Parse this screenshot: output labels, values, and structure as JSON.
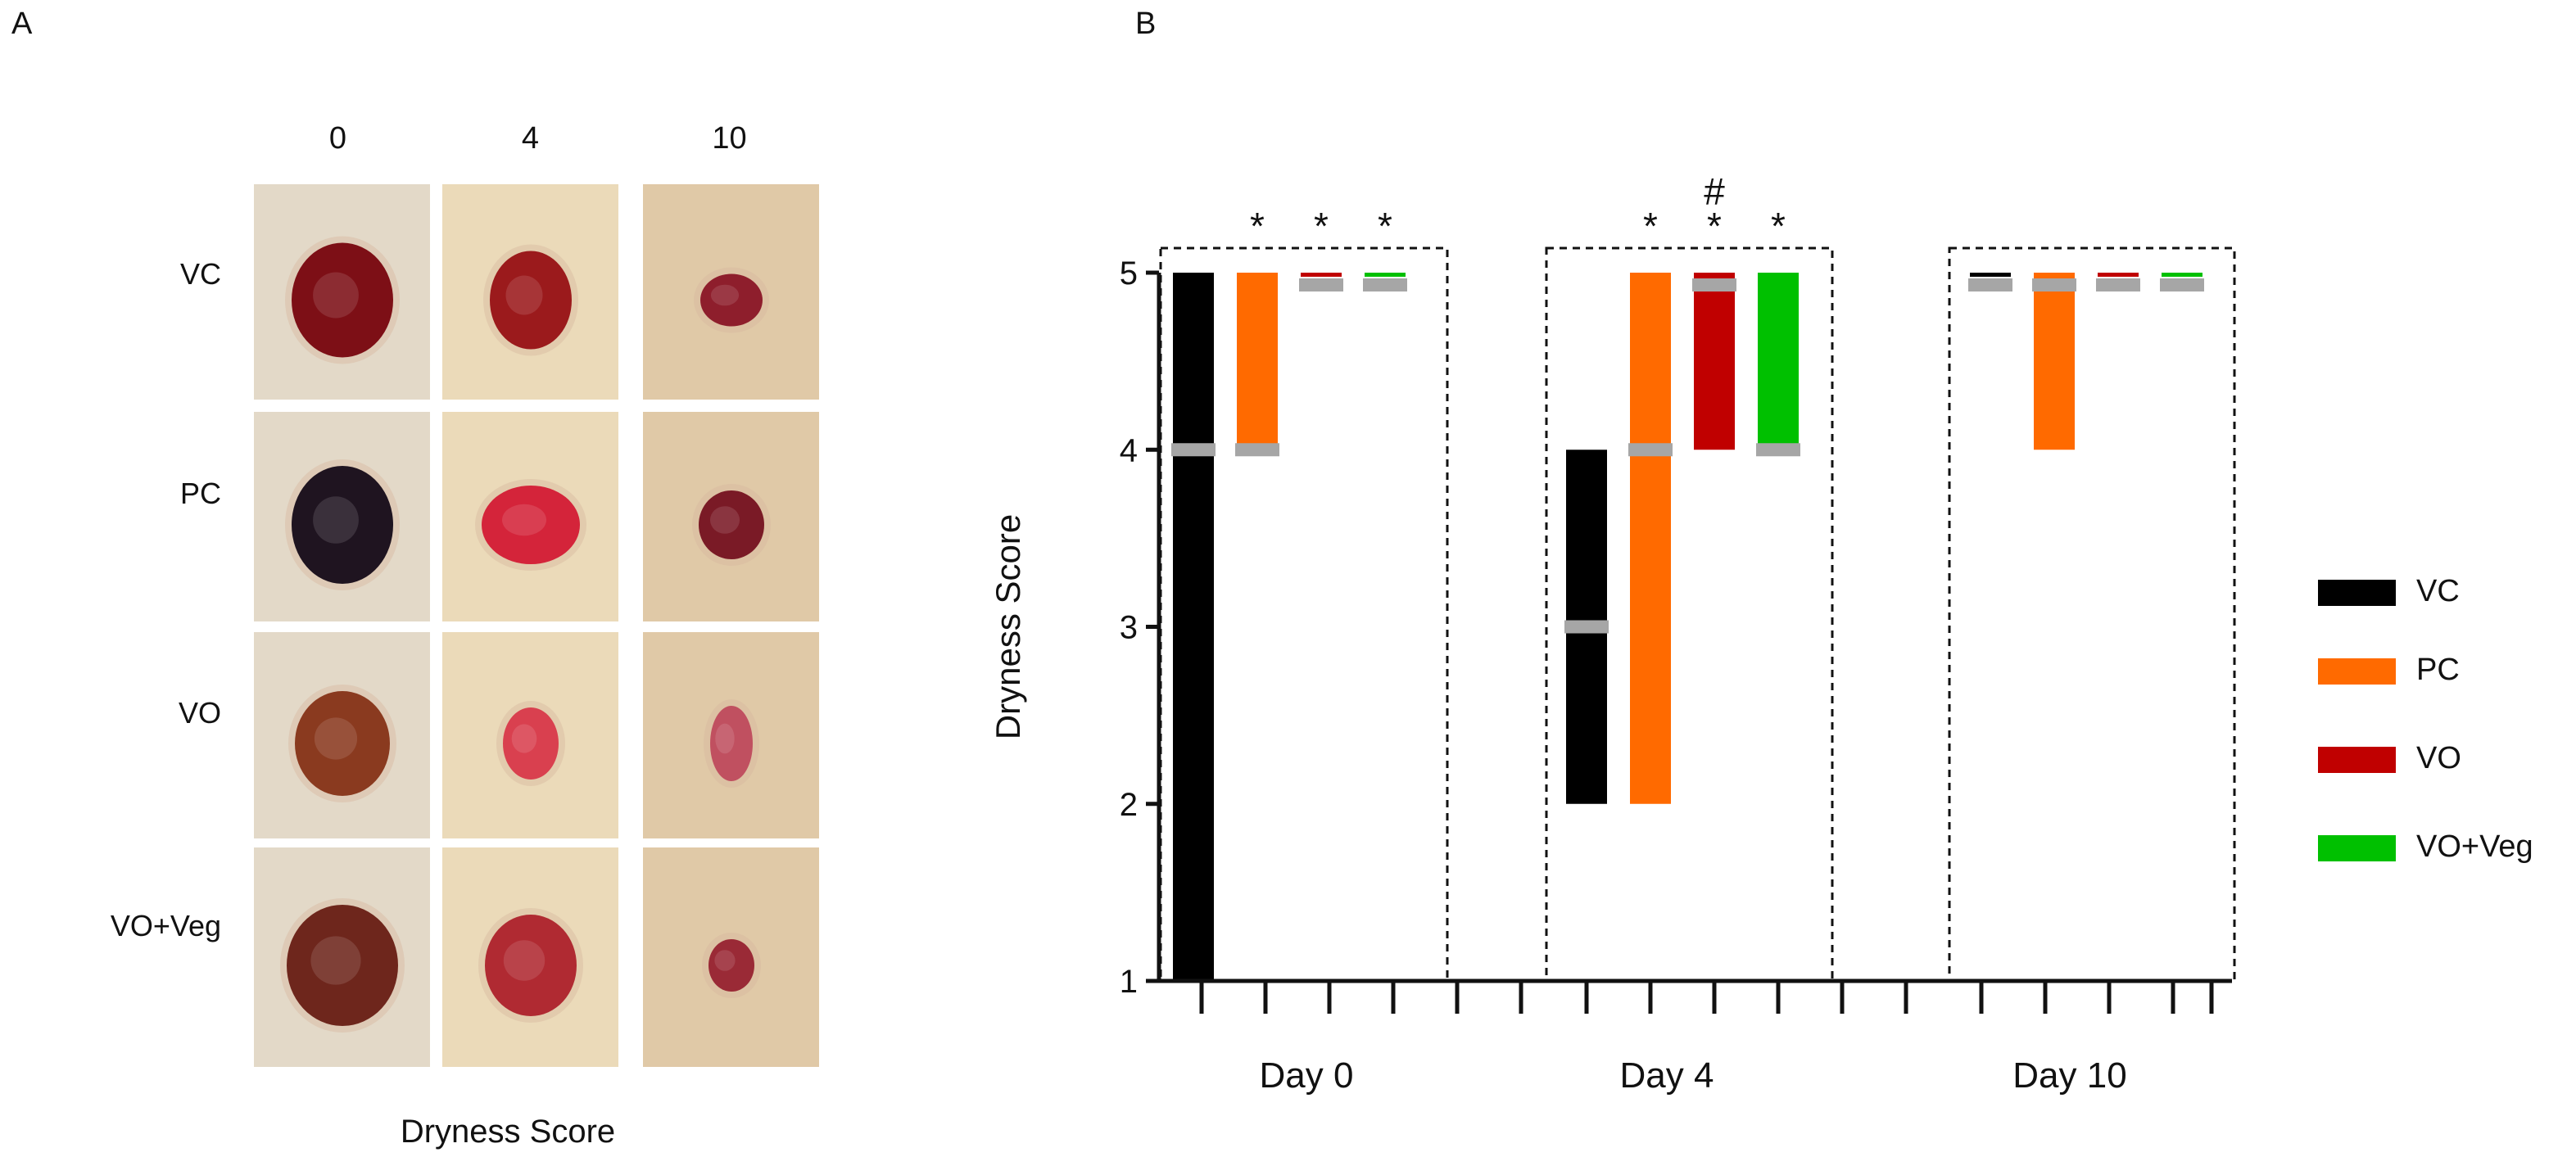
{
  "panel_a": {
    "label": "A",
    "column_labels": [
      "0",
      "4",
      "10"
    ],
    "row_labels": [
      "VC",
      "PC",
      "VO",
      "VO+Veg"
    ],
    "caption": "Dryness Score",
    "photos": [
      {
        "name": "photo-vc-day0",
        "wound": "#7d0f16"
      },
      {
        "name": "photo-vc-day4",
        "wound": "#9b1a1c"
      },
      {
        "name": "photo-vc-day10",
        "wound": "#8e1e2c"
      },
      {
        "name": "photo-pc-day0",
        "wound": "#1f1420"
      },
      {
        "name": "photo-pc-day4",
        "wound": "#d4243a"
      },
      {
        "name": "photo-pc-day10",
        "wound": "#7a1a26"
      },
      {
        "name": "photo-vo-day0",
        "wound": "#8a3a1f"
      },
      {
        "name": "photo-vo-day4",
        "wound": "#d9404f"
      },
      {
        "name": "photo-vo-day10",
        "wound": "#c05060"
      },
      {
        "name": "photo-voveg-day0",
        "wound": "#6e261c"
      },
      {
        "name": "photo-voveg-day4",
        "wound": "#b02a32"
      },
      {
        "name": "photo-voveg-day10",
        "wound": "#9a2a36"
      }
    ]
  },
  "chart_data": {
    "type": "bar",
    "panel_label": "B",
    "title": "",
    "xlabel": "",
    "ylabel": "Dryness Score",
    "ylim": [
      1,
      5
    ],
    "yticks": [
      "1",
      "2",
      "3",
      "4",
      "5"
    ],
    "categories": [
      "Day 0",
      "Day 4",
      "Day 10"
    ],
    "series": [
      {
        "name": "VC",
        "color": "#000000",
        "low": [
          1,
          2,
          5
        ],
        "high": [
          5,
          4,
          5
        ],
        "median": [
          4,
          3,
          5
        ]
      },
      {
        "name": "PC",
        "color": "#ff6a00",
        "low": [
          4,
          2,
          4
        ],
        "high": [
          5,
          5,
          5
        ],
        "median": [
          4,
          4,
          5
        ]
      },
      {
        "name": "VO",
        "color": "#c00000",
        "low": [
          5,
          4,
          5
        ],
        "high": [
          5,
          5,
          5
        ],
        "median": [
          5,
          5,
          5
        ]
      },
      {
        "name": "VO+Veg",
        "color": "#00c000",
        "low": [
          5,
          4,
          5
        ],
        "high": [
          5,
          5,
          5
        ],
        "median": [
          5,
          4,
          5
        ]
      }
    ],
    "median_color": "#a6a6a6",
    "annotations": [
      {
        "group": 0,
        "series": 1,
        "text": "*"
      },
      {
        "group": 0,
        "series": 2,
        "text": "*"
      },
      {
        "group": 0,
        "series": 3,
        "text": "*"
      },
      {
        "group": 1,
        "series": 1,
        "text": "*"
      },
      {
        "group": 1,
        "series": 2,
        "text": "*"
      },
      {
        "group": 1,
        "series": 2,
        "text": "#",
        "stack": 2
      },
      {
        "group": 1,
        "series": 3,
        "text": "*"
      }
    ],
    "legend": {
      "position": "right",
      "entries": [
        "VC",
        "PC",
        "VO",
        "VO+Veg"
      ]
    }
  }
}
